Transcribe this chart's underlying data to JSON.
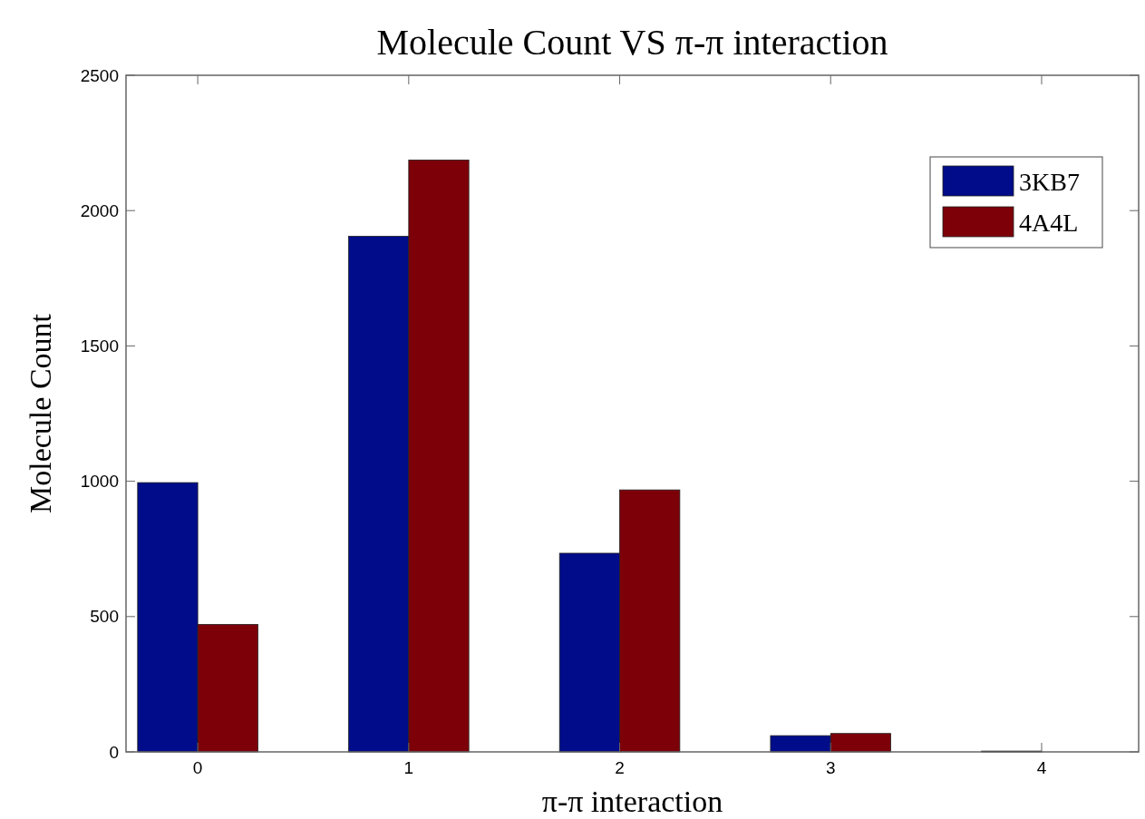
{
  "chart_data": {
    "type": "bar",
    "title": "Molecule Count VS π-π interaction",
    "xlabel": "π-π interaction",
    "ylabel": "Molecule Count",
    "categories": [
      "0",
      "1",
      "2",
      "3",
      "4"
    ],
    "series": [
      {
        "name": "3KB7",
        "color": "#000c8a",
        "values": [
          995,
          1905,
          734,
          60,
          3
        ]
      },
      {
        "name": "4A4L",
        "color": "#7d0009",
        "values": [
          471,
          2187,
          968,
          68,
          0
        ]
      }
    ],
    "ylim": [
      0,
      2500
    ],
    "yticks": [
      0,
      500,
      1000,
      1500,
      2000,
      2500
    ],
    "legend": "top right"
  }
}
